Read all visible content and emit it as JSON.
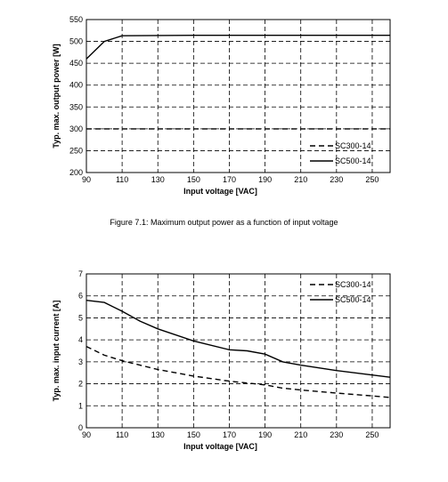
{
  "caption": "Figure 7.1: Maximum output power as a function of input voltage",
  "chart_data": [
    {
      "type": "line",
      "title": "",
      "xlabel": "Input voltage [VAC]",
      "ylabel": "Typ. max. output power [W]",
      "xlim": [
        90,
        260
      ],
      "ylim": [
        200,
        550
      ],
      "xticks": [
        90,
        110,
        130,
        150,
        170,
        190,
        210,
        230,
        250
      ],
      "yticks": [
        200,
        250,
        300,
        350,
        400,
        450,
        500,
        550
      ],
      "grid": true,
      "legend_position": "bottom-right",
      "series": [
        {
          "name": "SC300-14",
          "style": "dashed",
          "x": [
            90,
            260
          ],
          "y": [
            300,
            300
          ]
        },
        {
          "name": "SC500-14",
          "style": "solid",
          "x": [
            90,
            100,
            110,
            150,
            190,
            260
          ],
          "y": [
            460,
            500,
            513,
            514,
            514,
            514
          ]
        }
      ]
    },
    {
      "type": "line",
      "title": "",
      "xlabel": "Input voltage [VAC]",
      "ylabel": "Typ. max. input current [A]",
      "xlim": [
        90,
        260
      ],
      "ylim": [
        0,
        7
      ],
      "xticks": [
        90,
        110,
        130,
        150,
        170,
        190,
        210,
        230,
        250
      ],
      "yticks": [
        0,
        1,
        2,
        3,
        4,
        5,
        6,
        7
      ],
      "grid": true,
      "legend_position": "top-right",
      "series": [
        {
          "name": "SC300-14",
          "style": "dashed",
          "x": [
            90,
            100,
            110,
            130,
            150,
            170,
            190,
            200,
            210,
            230,
            250,
            260
          ],
          "y": [
            3.7,
            3.3,
            3.05,
            2.65,
            2.35,
            2.12,
            1.95,
            1.8,
            1.72,
            1.58,
            1.45,
            1.38
          ]
        },
        {
          "name": "SC500-14",
          "style": "solid",
          "x": [
            90,
            100,
            110,
            120,
            130,
            150,
            170,
            180,
            190,
            200,
            210,
            230,
            250,
            260
          ],
          "y": [
            5.8,
            5.7,
            5.3,
            4.85,
            4.5,
            3.95,
            3.55,
            3.5,
            3.35,
            3.0,
            2.85,
            2.6,
            2.4,
            2.3
          ]
        }
      ]
    }
  ]
}
